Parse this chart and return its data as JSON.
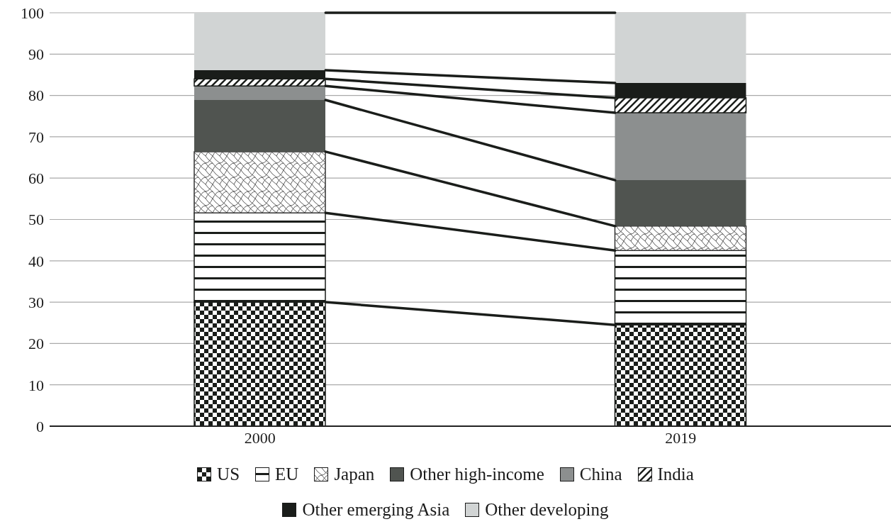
{
  "chart_data": {
    "type": "bar",
    "stacked": true,
    "categories": [
      "2000",
      "2019"
    ],
    "series": [
      {
        "name": "US",
        "color": "#1a1d1a",
        "values": [
          30,
          24.5
        ]
      },
      {
        "name": "EU",
        "color": "#1a1d1a",
        "values": [
          21.6,
          18
        ]
      },
      {
        "name": "Japan",
        "color": "#333333",
        "values": [
          14.8,
          5.9
        ]
      },
      {
        "name": "Other high-income",
        "color": "#505450",
        "values": [
          12.5,
          11.1
        ]
      },
      {
        "name": "China",
        "color": "#8c8f8f",
        "values": [
          3.4,
          16.3
        ]
      },
      {
        "name": "India",
        "color": "#1a1d1a",
        "values": [
          1.7,
          3.6
        ]
      },
      {
        "name": "Other emerging Asia",
        "color": "#1a1d1a",
        "values": [
          2.1,
          3.6
        ]
      },
      {
        "name": "Other developing",
        "color": "#d1d4d4",
        "values": [
          13.9,
          17
        ]
      }
    ],
    "ylim": [
      0,
      100
    ],
    "yticks": [
      0,
      10,
      20,
      30,
      40,
      50,
      60,
      70,
      80,
      90,
      100
    ],
    "grid": "y",
    "legend": "bottom"
  }
}
